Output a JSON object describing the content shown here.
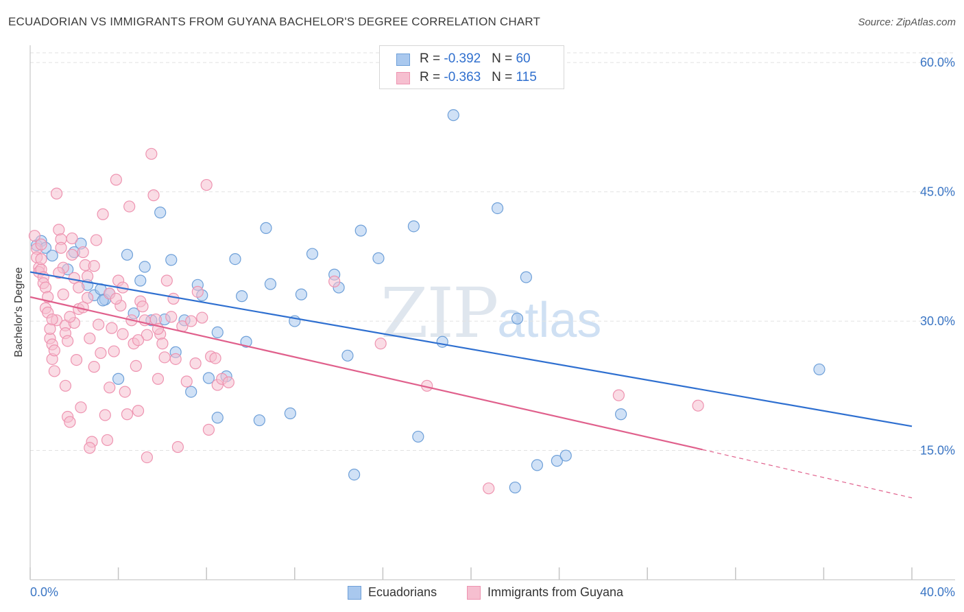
{
  "title": "ECUADORIAN VS IMMIGRANTS FROM GUYANA BACHELOR'S DEGREE CORRELATION CHART",
  "source": "Source: ZipAtlas.com",
  "watermark": {
    "zip": "ZIP",
    "atlas": "atlas"
  },
  "stats": [
    {
      "r_label": "R = ",
      "r_value": "-0.392",
      "n_label": "N = ",
      "n_value": "60"
    },
    {
      "r_label": "R = ",
      "r_value": "-0.363",
      "n_label": "N = ",
      "n_value": "115"
    }
  ],
  "legend": {
    "ecuadorians": "Ecuadorians",
    "guyana": "Immigrants from Guyana"
  },
  "colors": {
    "blue_fill": "#a9c8ee",
    "blue_stroke": "#6d9fd8",
    "blue_line": "#2e6fd0",
    "pink_fill": "#f6bfd0",
    "pink_stroke": "#ee93b0",
    "pink_line": "#e0608c",
    "axis_label": "#3a75c4",
    "grid": "#e2e2e2"
  },
  "chart_data": {
    "type": "scatter",
    "title": "ECUADORIAN VS IMMIGRANTS FROM GUYANA BACHELOR'S DEGREE CORRELATION CHART",
    "xlabel": "",
    "ylabel": "Bachelor's Degree",
    "xlim": [
      0,
      40
    ],
    "ylim": [
      0,
      62
    ],
    "x_tick_labels": [
      "0.0%",
      "40.0%"
    ],
    "y_ticks": [
      15,
      30,
      45,
      60
    ],
    "y_tick_labels": [
      "15.0%",
      "30.0%",
      "45.0%",
      "60.0%"
    ],
    "grid": true,
    "legend_position": "bottom-center",
    "series": [
      {
        "name": "Ecuadorians",
        "r": -0.392,
        "n": 60,
        "trend": {
          "x0": 0,
          "y0": 35.7,
          "x1": 40,
          "y1": 17.8
        },
        "points": [
          [
            0.3,
            38.8
          ],
          [
            0.5,
            39.3
          ],
          [
            0.7,
            38.5
          ],
          [
            1.0,
            37.6
          ],
          [
            1.7,
            36.0
          ],
          [
            2.0,
            38.0
          ],
          [
            2.3,
            39.0
          ],
          [
            2.6,
            34.2
          ],
          [
            2.9,
            33.0
          ],
          [
            3.2,
            33.7
          ],
          [
            3.4,
            32.5
          ],
          [
            3.6,
            33.2
          ],
          [
            4.0,
            23.3
          ],
          [
            4.4,
            37.7
          ],
          [
            4.7,
            30.9
          ],
          [
            5.0,
            34.7
          ],
          [
            5.2,
            36.3
          ],
          [
            5.5,
            30.1
          ],
          [
            5.9,
            42.6
          ],
          [
            6.1,
            30.2
          ],
          [
            6.4,
            37.1
          ],
          [
            6.6,
            26.4
          ],
          [
            7.0,
            30.1
          ],
          [
            7.3,
            21.8
          ],
          [
            7.6,
            34.2
          ],
          [
            7.8,
            33.0
          ],
          [
            8.1,
            23.4
          ],
          [
            8.5,
            28.7
          ],
          [
            8.9,
            23.6
          ],
          [
            9.3,
            37.2
          ],
          [
            9.6,
            32.9
          ],
          [
            9.8,
            27.6
          ],
          [
            10.4,
            18.5
          ],
          [
            10.7,
            40.8
          ],
          [
            10.9,
            34.3
          ],
          [
            11.8,
            19.3
          ],
          [
            12.0,
            30.0
          ],
          [
            12.3,
            33.1
          ],
          [
            12.8,
            37.8
          ],
          [
            13.8,
            35.4
          ],
          [
            14.0,
            33.9
          ],
          [
            14.4,
            26.0
          ],
          [
            14.7,
            12.2
          ],
          [
            15.0,
            40.5
          ],
          [
            15.8,
            37.3
          ],
          [
            17.4,
            41.0
          ],
          [
            17.6,
            16.6
          ],
          [
            18.7,
            27.6
          ],
          [
            19.2,
            53.9
          ],
          [
            21.2,
            43.1
          ],
          [
            22.0,
            10.7
          ],
          [
            22.1,
            30.3
          ],
          [
            22.5,
            35.1
          ],
          [
            23.0,
            13.3
          ],
          [
            23.9,
            13.8
          ],
          [
            24.3,
            14.4
          ],
          [
            26.8,
            19.2
          ],
          [
            35.8,
            24.4
          ],
          [
            8.5,
            18.8
          ],
          [
            3.3,
            32.4
          ]
        ]
      },
      {
        "name": "Immigrants from Guyana",
        "r": -0.363,
        "n": 115,
        "trend": {
          "x0": 0,
          "y0": 32.8,
          "x1": 30.5,
          "y1": 15.1
        },
        "trend_dashed": {
          "x0": 30.5,
          "y0": 15.1,
          "x1": 40,
          "y1": 9.5
        },
        "points": [
          [
            0.2,
            39.9
          ],
          [
            0.3,
            38.4
          ],
          [
            0.3,
            37.4
          ],
          [
            0.4,
            36.2
          ],
          [
            0.4,
            35.7
          ],
          [
            0.5,
            38.9
          ],
          [
            0.5,
            36.0
          ],
          [
            0.6,
            35.1
          ],
          [
            0.6,
            34.4
          ],
          [
            0.7,
            33.9
          ],
          [
            0.7,
            31.5
          ],
          [
            0.8,
            32.8
          ],
          [
            0.8,
            31.0
          ],
          [
            0.9,
            28.0
          ],
          [
            0.9,
            29.1
          ],
          [
            1.0,
            27.3
          ],
          [
            1.0,
            25.6
          ],
          [
            1.1,
            26.6
          ],
          [
            1.1,
            24.2
          ],
          [
            1.2,
            44.8
          ],
          [
            1.2,
            30.1
          ],
          [
            1.3,
            40.6
          ],
          [
            1.4,
            39.5
          ],
          [
            1.4,
            38.5
          ],
          [
            1.5,
            36.2
          ],
          [
            1.5,
            33.1
          ],
          [
            1.6,
            29.5
          ],
          [
            1.6,
            28.6
          ],
          [
            1.7,
            27.7
          ],
          [
            1.7,
            18.9
          ],
          [
            1.8,
            18.3
          ],
          [
            1.9,
            39.6
          ],
          [
            1.9,
            37.7
          ],
          [
            2.0,
            35.0
          ],
          [
            2.0,
            29.8
          ],
          [
            2.1,
            25.5
          ],
          [
            2.2,
            33.9
          ],
          [
            2.2,
            31.4
          ],
          [
            2.3,
            20.0
          ],
          [
            2.4,
            38.0
          ],
          [
            2.5,
            36.5
          ],
          [
            2.6,
            35.2
          ],
          [
            2.6,
            32.7
          ],
          [
            2.7,
            28.0
          ],
          [
            2.8,
            16.0
          ],
          [
            2.9,
            24.7
          ],
          [
            3.0,
            39.4
          ],
          [
            3.1,
            29.6
          ],
          [
            3.2,
            26.3
          ],
          [
            3.3,
            42.4
          ],
          [
            3.4,
            19.1
          ],
          [
            3.5,
            16.2
          ],
          [
            3.6,
            33.2
          ],
          [
            3.7,
            29.2
          ],
          [
            3.8,
            26.5
          ],
          [
            3.9,
            46.4
          ],
          [
            4.0,
            34.7
          ],
          [
            4.1,
            31.8
          ],
          [
            4.2,
            28.5
          ],
          [
            4.3,
            21.8
          ],
          [
            4.4,
            19.2
          ],
          [
            4.5,
            43.3
          ],
          [
            4.6,
            30.1
          ],
          [
            4.7,
            27.4
          ],
          [
            4.8,
            24.8
          ],
          [
            4.9,
            19.6
          ],
          [
            5.0,
            32.3
          ],
          [
            5.1,
            31.7
          ],
          [
            5.2,
            30.1
          ],
          [
            5.3,
            28.4
          ],
          [
            5.3,
            14.2
          ],
          [
            5.5,
            49.4
          ],
          [
            5.6,
            44.6
          ],
          [
            5.7,
            30.2
          ],
          [
            5.8,
            23.3
          ],
          [
            5.9,
            28.5
          ],
          [
            6.0,
            27.4
          ],
          [
            6.1,
            25.8
          ],
          [
            6.2,
            34.7
          ],
          [
            6.4,
            30.5
          ],
          [
            6.6,
            25.6
          ],
          [
            6.7,
            15.4
          ],
          [
            6.9,
            29.4
          ],
          [
            7.1,
            23.0
          ],
          [
            7.3,
            30.0
          ],
          [
            7.5,
            25.1
          ],
          [
            7.6,
            33.4
          ],
          [
            7.8,
            30.4
          ],
          [
            8.0,
            45.8
          ],
          [
            8.1,
            17.4
          ],
          [
            8.2,
            25.9
          ],
          [
            8.4,
            25.7
          ],
          [
            8.5,
            22.6
          ],
          [
            8.7,
            23.3
          ],
          [
            9.0,
            22.9
          ],
          [
            13.8,
            34.6
          ],
          [
            15.9,
            27.4
          ],
          [
            18.0,
            22.5
          ],
          [
            20.8,
            10.6
          ],
          [
            26.7,
            21.4
          ],
          [
            30.3,
            20.2
          ],
          [
            1.0,
            30.2
          ],
          [
            1.3,
            35.6
          ],
          [
            2.4,
            31.6
          ],
          [
            3.6,
            22.3
          ],
          [
            4.2,
            33.9
          ],
          [
            5.8,
            29.1
          ],
          [
            2.7,
            15.3
          ],
          [
            1.8,
            30.5
          ],
          [
            0.5,
            37.2
          ],
          [
            3.9,
            32.6
          ],
          [
            6.5,
            32.6
          ],
          [
            1.6,
            22.5
          ],
          [
            2.9,
            36.4
          ],
          [
            4.9,
            27.8
          ]
        ]
      }
    ]
  }
}
